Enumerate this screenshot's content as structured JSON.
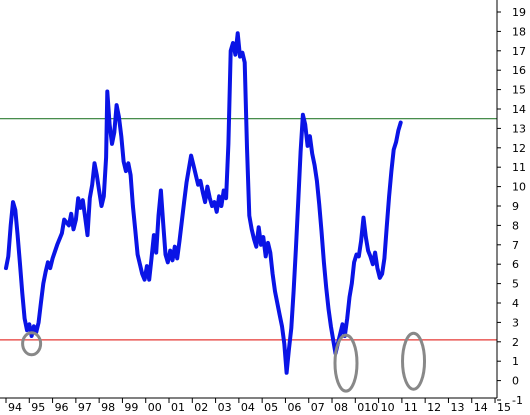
{
  "chart_data": {
    "type": "line",
    "title": "",
    "xlabel": "",
    "ylabel": "",
    "ylim": [
      -1,
      19
    ],
    "xlim": [
      1994.0,
      2015.6
    ],
    "y_axis_side": "right",
    "grid": false,
    "legend": "none",
    "y_ticks": [
      -1,
      0,
      1,
      2,
      3,
      4,
      5,
      6,
      7,
      8,
      9,
      10,
      11,
      12,
      13,
      14,
      15,
      16,
      17,
      18,
      19
    ],
    "x_ticks": [
      {
        "x": 1994.0,
        "label": "94"
      },
      {
        "x": 1995.0,
        "label": "95"
      },
      {
        "x": 1996.0,
        "label": "96"
      },
      {
        "x": 1997.0,
        "label": "97"
      },
      {
        "x": 1998.0,
        "label": "98"
      },
      {
        "x": 1999.0,
        "label": "99"
      },
      {
        "x": 2000.0,
        "label": "00"
      },
      {
        "x": 2001.0,
        "label": "01"
      },
      {
        "x": 2002.0,
        "label": "02"
      },
      {
        "x": 2003.0,
        "label": "03"
      },
      {
        "x": 2004.0,
        "label": "04"
      },
      {
        "x": 2005.0,
        "label": "05"
      },
      {
        "x": 2006.0,
        "label": "06"
      },
      {
        "x": 2007.0,
        "label": "07"
      },
      {
        "x": 2008.0,
        "label": "08"
      },
      {
        "x": 2009.0,
        "label": "010"
      },
      {
        "x": 2010.0,
        "label": "10"
      },
      {
        "x": 2011.0,
        "label": "11"
      },
      {
        "x": 2012.0,
        "label": "12"
      },
      {
        "x": 2013.0,
        "label": "13"
      },
      {
        "x": 2014.0,
        "label": "14"
      },
      {
        "x": 2015.0,
        "label": "15"
      }
    ],
    "reference_lines": [
      {
        "y": 13.5,
        "color": "#2e7d32"
      },
      {
        "y": 2.1,
        "color": "#e53935"
      }
    ],
    "highlights": [
      {
        "x": 1995.1,
        "y": 1.9,
        "color": "#888888"
      },
      {
        "x": 2008.6,
        "y": 0.9,
        "color": "#888888"
      },
      {
        "x": 2011.5,
        "y": 1.0,
        "color": "#888888"
      }
    ],
    "series": [
      {
        "color": "#0a14e6",
        "points": [
          [
            1994.0,
            5.8
          ],
          [
            1994.1,
            6.4
          ],
          [
            1994.2,
            8.0
          ],
          [
            1994.3,
            9.2
          ],
          [
            1994.4,
            8.8
          ],
          [
            1994.5,
            7.5
          ],
          [
            1994.6,
            6.0
          ],
          [
            1994.7,
            4.5
          ],
          [
            1994.8,
            3.2
          ],
          [
            1994.9,
            2.6
          ],
          [
            1995.0,
            2.9
          ],
          [
            1995.1,
            2.3
          ],
          [
            1995.2,
            2.8
          ],
          [
            1995.3,
            2.5
          ],
          [
            1995.4,
            3.0
          ],
          [
            1995.5,
            4.0
          ],
          [
            1995.6,
            5.0
          ],
          [
            1995.7,
            5.6
          ],
          [
            1995.8,
            6.1
          ],
          [
            1995.9,
            5.8
          ],
          [
            1996.0,
            6.3
          ],
          [
            1996.2,
            7.0
          ],
          [
            1996.4,
            7.6
          ],
          [
            1996.5,
            8.3
          ],
          [
            1996.7,
            8.0
          ],
          [
            1996.8,
            8.6
          ],
          [
            1996.9,
            7.8
          ],
          [
            1997.0,
            8.3
          ],
          [
            1997.1,
            9.4
          ],
          [
            1997.2,
            8.9
          ],
          [
            1997.3,
            9.3
          ],
          [
            1997.4,
            8.4
          ],
          [
            1997.5,
            7.5
          ],
          [
            1997.6,
            9.4
          ],
          [
            1997.7,
            10.1
          ],
          [
            1997.8,
            11.2
          ],
          [
            1997.9,
            10.6
          ],
          [
            1998.0,
            9.8
          ],
          [
            1998.1,
            9.0
          ],
          [
            1998.2,
            9.5
          ],
          [
            1998.3,
            11.5
          ],
          [
            1998.35,
            14.9
          ],
          [
            1998.45,
            13.2
          ],
          [
            1998.55,
            12.2
          ],
          [
            1998.65,
            12.8
          ],
          [
            1998.75,
            14.2
          ],
          [
            1998.85,
            13.6
          ],
          [
            1998.95,
            12.6
          ],
          [
            1999.05,
            11.3
          ],
          [
            1999.15,
            10.8
          ],
          [
            1999.25,
            11.2
          ],
          [
            1999.35,
            10.6
          ],
          [
            1999.45,
            9.0
          ],
          [
            1999.55,
            7.8
          ],
          [
            1999.65,
            6.5
          ],
          [
            1999.75,
            6.0
          ],
          [
            1999.85,
            5.5
          ],
          [
            1999.95,
            5.2
          ],
          [
            2000.05,
            5.9
          ],
          [
            2000.15,
            5.2
          ],
          [
            2000.25,
            6.3
          ],
          [
            2000.35,
            7.5
          ],
          [
            2000.45,
            6.6
          ],
          [
            2000.55,
            8.5
          ],
          [
            2000.65,
            9.8
          ],
          [
            2000.75,
            8.1
          ],
          [
            2000.85,
            6.5
          ],
          [
            2000.95,
            6.1
          ],
          [
            2001.05,
            6.7
          ],
          [
            2001.15,
            6.2
          ],
          [
            2001.25,
            6.9
          ],
          [
            2001.35,
            6.3
          ],
          [
            2001.45,
            7.2
          ],
          [
            2001.55,
            8.2
          ],
          [
            2001.65,
            9.2
          ],
          [
            2001.75,
            10.2
          ],
          [
            2001.85,
            10.9
          ],
          [
            2001.95,
            11.6
          ],
          [
            2002.05,
            11.1
          ],
          [
            2002.15,
            10.6
          ],
          [
            2002.25,
            10.1
          ],
          [
            2002.35,
            10.3
          ],
          [
            2002.45,
            9.7
          ],
          [
            2002.55,
            9.2
          ],
          [
            2002.65,
            10.0
          ],
          [
            2002.75,
            9.4
          ],
          [
            2002.85,
            9.0
          ],
          [
            2002.95,
            9.2
          ],
          [
            2003.05,
            8.7
          ],
          [
            2003.15,
            9.5
          ],
          [
            2003.25,
            9.0
          ],
          [
            2003.35,
            9.8
          ],
          [
            2003.45,
            9.4
          ],
          [
            2003.55,
            12.2
          ],
          [
            2003.65,
            17.0
          ],
          [
            2003.75,
            17.4
          ],
          [
            2003.85,
            16.8
          ],
          [
            2003.95,
            17.9
          ],
          [
            2004.05,
            16.7
          ],
          [
            2004.15,
            16.9
          ],
          [
            2004.25,
            16.4
          ],
          [
            2004.35,
            12.0
          ],
          [
            2004.45,
            8.5
          ],
          [
            2004.55,
            7.8
          ],
          [
            2004.65,
            7.3
          ],
          [
            2004.75,
            6.9
          ],
          [
            2004.85,
            7.9
          ],
          [
            2004.95,
            7.0
          ],
          [
            2005.05,
            7.4
          ],
          [
            2005.15,
            6.4
          ],
          [
            2005.25,
            7.1
          ],
          [
            2005.35,
            6.6
          ],
          [
            2005.45,
            5.5
          ],
          [
            2005.55,
            4.6
          ],
          [
            2005.65,
            4.0
          ],
          [
            2005.75,
            3.4
          ],
          [
            2005.85,
            2.8
          ],
          [
            2005.95,
            1.9
          ],
          [
            2006.05,
            0.4
          ],
          [
            2006.15,
            1.6
          ],
          [
            2006.25,
            2.7
          ],
          [
            2006.35,
            4.6
          ],
          [
            2006.45,
            6.8
          ],
          [
            2006.55,
            9.3
          ],
          [
            2006.65,
            11.8
          ],
          [
            2006.75,
            13.7
          ],
          [
            2006.85,
            13.2
          ],
          [
            2006.95,
            12.1
          ],
          [
            2007.05,
            12.6
          ],
          [
            2007.15,
            11.7
          ],
          [
            2007.25,
            11.1
          ],
          [
            2007.35,
            10.3
          ],
          [
            2007.45,
            9.1
          ],
          [
            2007.55,
            7.7
          ],
          [
            2007.65,
            6.1
          ],
          [
            2007.75,
            4.8
          ],
          [
            2007.85,
            3.7
          ],
          [
            2007.95,
            2.8
          ],
          [
            2008.05,
            2.1
          ],
          [
            2008.15,
            1.4
          ],
          [
            2008.25,
            1.9
          ],
          [
            2008.35,
            2.4
          ],
          [
            2008.45,
            2.9
          ],
          [
            2008.55,
            2.3
          ],
          [
            2008.65,
            3.2
          ],
          [
            2008.75,
            4.3
          ],
          [
            2008.85,
            5.0
          ],
          [
            2008.95,
            6.1
          ],
          [
            2009.05,
            6.5
          ],
          [
            2009.15,
            6.4
          ],
          [
            2009.25,
            7.2
          ],
          [
            2009.35,
            8.4
          ],
          [
            2009.45,
            7.4
          ],
          [
            2009.55,
            6.7
          ],
          [
            2009.65,
            6.4
          ],
          [
            2009.75,
            6.0
          ],
          [
            2009.85,
            6.6
          ],
          [
            2009.95,
            5.8
          ],
          [
            2010.05,
            5.3
          ],
          [
            2010.15,
            5.5
          ],
          [
            2010.25,
            6.3
          ],
          [
            2010.35,
            7.9
          ],
          [
            2010.45,
            9.5
          ],
          [
            2010.55,
            10.8
          ],
          [
            2010.65,
            11.9
          ],
          [
            2010.75,
            12.3
          ],
          [
            2010.85,
            12.9
          ],
          [
            2010.95,
            13.3
          ]
        ]
      }
    ]
  }
}
